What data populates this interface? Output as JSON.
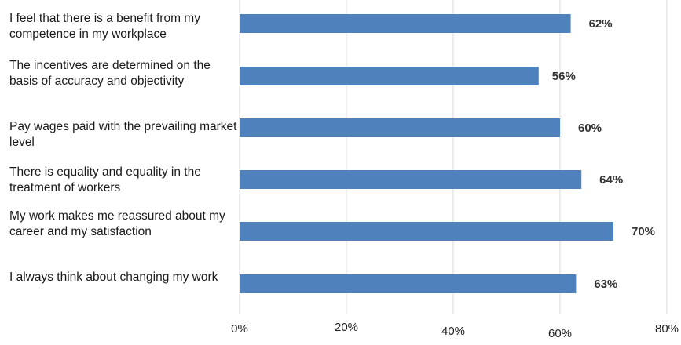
{
  "chart_data": {
    "type": "bar",
    "orientation": "horizontal",
    "categories": [
      "I feel that there is a benefit from my competence in my workplace",
      "The incentives are determined on the basis of accuracy and objectivity",
      "Pay wages paid with the prevailing market level",
      "There is equality and equality in the treatment of workers",
      "My work makes me reassured about my career and my satisfaction",
      "I always think about changing my work"
    ],
    "values": [
      62,
      56,
      60,
      64,
      70,
      63
    ],
    "data_labels": [
      "62%",
      "56%",
      "60%",
      "64%",
      "70%",
      "63%"
    ],
    "x_ticks": [
      "0%",
      "20%",
      "40%",
      "60%",
      "80%"
    ],
    "xlim": [
      0,
      80
    ],
    "grid": "vertical",
    "bar_color": "#4f81bd",
    "grid_color": "#d9d9d9"
  }
}
